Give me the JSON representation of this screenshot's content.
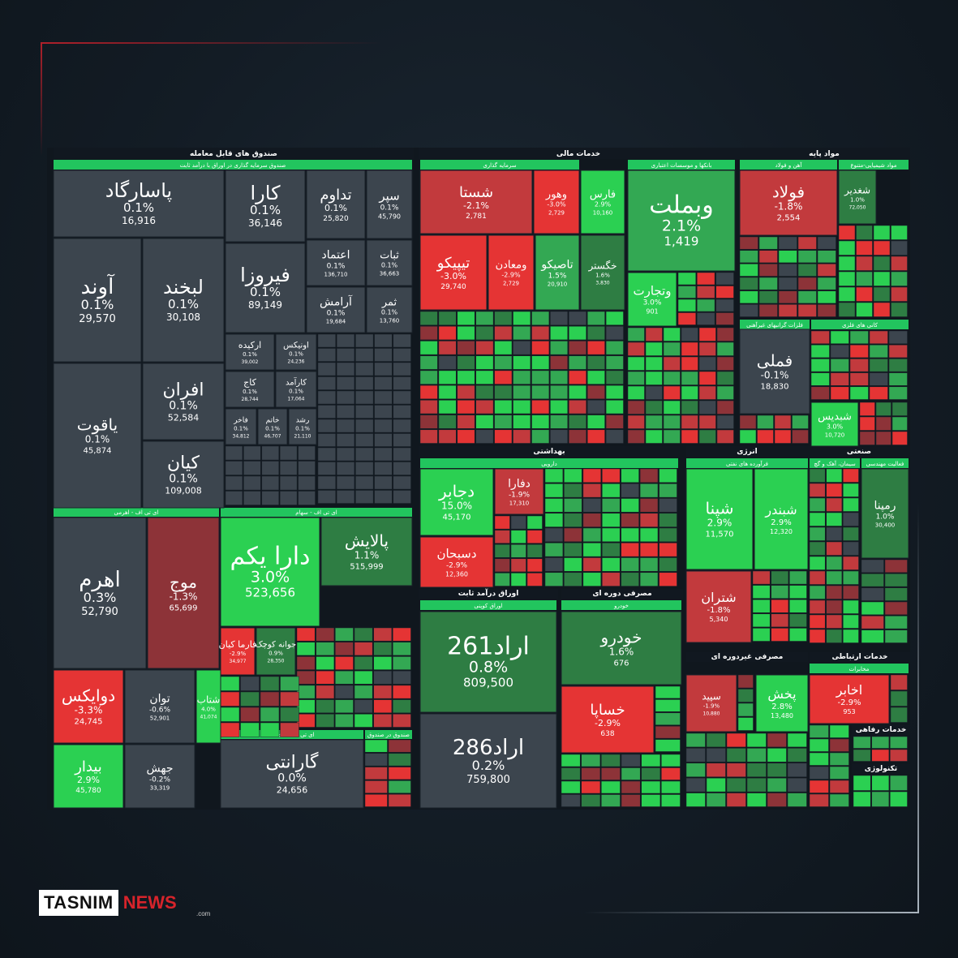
{
  "brand": {
    "name": "TASNIM",
    "news": "NEWS",
    "suffix": ".com"
  },
  "colors": {
    "up_strong": "#2bd052",
    "up": "#33a853",
    "up_dim": "#2e7d43",
    "flat": "#3c454e",
    "down_dim": "#8d3338",
    "down": "#c23a3d",
    "down_strong": "#e53434",
    "title_bar": "#22c55e",
    "background": "#131c25"
  },
  "chart_data": {
    "type": "treemap",
    "title": "",
    "sectors": [
      {
        "name": "صندوق های قابل معامله"
      },
      {
        "name": "خدمات مالی"
      },
      {
        "name": "مواد پایه"
      },
      {
        "name": "بهداشتی"
      },
      {
        "name": "انرژی"
      },
      {
        "name": "صنعتی"
      },
      {
        "name": "اوراق درآمد ثابت"
      },
      {
        "name": "مصرفی دوره ای"
      },
      {
        "name": "مصرفی غیردوره ای"
      },
      {
        "name": "خدمات ارتباطی"
      },
      {
        "name": "خدمات رفاهی"
      },
      {
        "name": "تکنولوژی"
      }
    ],
    "groups": [
      {
        "name": "صندوق سرمایه گذاری در اوراق با درآمد ثابت"
      },
      {
        "name": "ای تی اف - اهرمی"
      },
      {
        "name": "ای تی اف - سهام"
      },
      {
        "name": "ای تی اف - مختلط"
      },
      {
        "name": "صندوق در صندوق"
      },
      {
        "name": "سرمایه گذاری"
      },
      {
        "name": "بانکها و موسسات اعتباری"
      },
      {
        "name": "آهن و فولاد"
      },
      {
        "name": "مواد شیمیایی-متنوع"
      },
      {
        "name": "فلزات گرانبهای غیرآهنی"
      },
      {
        "name": "کانی های فلزی"
      },
      {
        "name": "دارویی"
      },
      {
        "name": "فرآورده های نفتی"
      },
      {
        "name": "سیمان، آهک و گچ"
      },
      {
        "name": "فعالیت مهندسی"
      },
      {
        "name": "اوراق کوپنی"
      },
      {
        "name": "خودرو"
      },
      {
        "name": "مخابرات"
      }
    ],
    "tiles": [
      {
        "name": "پاسارگاد",
        "change": "0.1%",
        "value": "16,916",
        "tone": "flat"
      },
      {
        "name": "کارا",
        "change": "0.1%",
        "value": "36,146",
        "tone": "flat"
      },
      {
        "name": "تداوم",
        "change": "0.1%",
        "value": "25,820",
        "tone": "flat"
      },
      {
        "name": "سپر",
        "change": "0.1%",
        "value": "45,790",
        "tone": "flat"
      },
      {
        "name": "آوند",
        "change": "0.1%",
        "value": "29,570",
        "tone": "flat"
      },
      {
        "name": "لبخند",
        "change": "0.1%",
        "value": "30,108",
        "tone": "flat"
      },
      {
        "name": "فیروزا",
        "change": "0.1%",
        "value": "89,149",
        "tone": "flat"
      },
      {
        "name": "اعتماد",
        "change": "0.1%",
        "value": "136,710",
        "tone": "flat"
      },
      {
        "name": "ثبات",
        "change": "0.1%",
        "value": "36,663",
        "tone": "flat"
      },
      {
        "name": "آرامش",
        "change": "0.1%",
        "value": "19,684",
        "tone": "flat"
      },
      {
        "name": "ثمر",
        "change": "0.1%",
        "value": "13,760",
        "tone": "flat"
      },
      {
        "name": "افران",
        "change": "0.1%",
        "value": "52,584",
        "tone": "flat"
      },
      {
        "name": "یاقوت",
        "change": "0.1%",
        "value": "45,874",
        "tone": "flat"
      },
      {
        "name": "کیان",
        "change": "0.1%",
        "value": "109,008",
        "tone": "flat"
      },
      {
        "name": "ارکیده",
        "change": "0.1%",
        "value": "39,002",
        "tone": "flat"
      },
      {
        "name": "اونیکس",
        "change": "0.1%",
        "value": "24,236",
        "tone": "flat"
      },
      {
        "name": "کاج",
        "change": "0.1%",
        "value": "28,744",
        "tone": "flat"
      },
      {
        "name": "کارآمد",
        "change": "0.1%",
        "value": "17,064",
        "tone": "flat"
      },
      {
        "name": "فاخر",
        "change": "0.1%",
        "value": "34,812",
        "tone": "flat"
      },
      {
        "name": "خاتم",
        "change": "0.1%",
        "value": "46,707",
        "tone": "flat"
      },
      {
        "name": "رشد",
        "change": "0.1%",
        "value": "21,110",
        "tone": "flat"
      },
      {
        "name": "اهرم",
        "change": "0.3%",
        "value": "52,790",
        "tone": "flat"
      },
      {
        "name": "موج",
        "change": "-1.3%",
        "value": "65,699",
        "tone": "down_dim"
      },
      {
        "name": "دارا یکم",
        "change": "3.0%",
        "value": "523,656",
        "tone": "up_strong"
      },
      {
        "name": "پالایش",
        "change": "1.1%",
        "value": "515,999",
        "tone": "up_dim"
      },
      {
        "name": "دوایکس",
        "change": "-3.3%",
        "value": "24,745",
        "tone": "down_strong"
      },
      {
        "name": "توان",
        "change": "-0.6%",
        "value": "52,901",
        "tone": "flat"
      },
      {
        "name": "شتاب",
        "change": "4.0%",
        "value": "41,074",
        "tone": "up_strong"
      },
      {
        "name": "بیدار",
        "change": "2.9%",
        "value": "45,780",
        "tone": "up_strong"
      },
      {
        "name": "جهش",
        "change": "-0.2%",
        "value": "33,319",
        "tone": "flat"
      },
      {
        "name": "گارانتی",
        "change": "0.0%",
        "value": "24,656",
        "tone": "flat"
      },
      {
        "name": "فارما کیان",
        "change": "-2.9%",
        "value": "34,977",
        "tone": "down_strong"
      },
      {
        "name": "جوانه کوچک",
        "change": "0.9%",
        "value": "28,350",
        "tone": "up_dim"
      },
      {
        "name": "شستا",
        "change": "-2.1%",
        "value": "2,781",
        "tone": "down"
      },
      {
        "name": "وهور",
        "change": "-3.0%",
        "value": "2,729",
        "tone": "down_strong"
      },
      {
        "name": "فارس",
        "change": "2.9%",
        "value": "10,160",
        "tone": "up_strong"
      },
      {
        "name": "وبملت",
        "change": "2.1%",
        "value": "1,419",
        "tone": "up"
      },
      {
        "name": "تیپیکو",
        "change": "-3.0%",
        "value": "29,740",
        "tone": "down_strong"
      },
      {
        "name": "ومعادن",
        "change": "-2.9%",
        "value": "2,729",
        "tone": "down_strong"
      },
      {
        "name": "تاصیکو",
        "change": "1.5%",
        "value": "20,910",
        "tone": "up"
      },
      {
        "name": "خگستر",
        "change": "1.6%",
        "value": "3,830",
        "tone": "up_dim"
      },
      {
        "name": "وتجارت",
        "change": "3.0%",
        "value": "901",
        "tone": "up_strong"
      },
      {
        "name": "فولاد",
        "change": "-1.8%",
        "value": "2,554",
        "tone": "down"
      },
      {
        "name": "شغدیر",
        "change": "1.0%",
        "value": "72,050",
        "tone": "up_dim"
      },
      {
        "name": "فملی",
        "change": "-0.1%",
        "value": "18,830",
        "tone": "flat"
      },
      {
        "name": "شبدیس",
        "change": "3.0%",
        "value": "10,720",
        "tone": "up_strong"
      },
      {
        "name": "دجابر",
        "change": "15.0%",
        "value": "45,170",
        "tone": "up_strong"
      },
      {
        "name": "دفارا",
        "change": "-1.9%",
        "value": "17,310",
        "tone": "down"
      },
      {
        "name": "دسبحان",
        "change": "-2.9%",
        "value": "12,360",
        "tone": "down_strong"
      },
      {
        "name": "شپنا",
        "change": "2.9%",
        "value": "11,570",
        "tone": "up_strong"
      },
      {
        "name": "شبندر",
        "change": "2.9%",
        "value": "12,320",
        "tone": "up_strong"
      },
      {
        "name": "شتران",
        "change": "-1.8%",
        "value": "5,340",
        "tone": "down"
      },
      {
        "name": "رمپنا",
        "change": "1.0%",
        "value": "30,400",
        "tone": "up_dim"
      },
      {
        "name": "اراد261",
        "change": "0.8%",
        "value": "809,500",
        "tone": "up_dim"
      },
      {
        "name": "اراد286",
        "change": "0.2%",
        "value": "759,800",
        "tone": "flat"
      },
      {
        "name": "خودرو",
        "change": "1.6%",
        "value": "676",
        "tone": "up_dim"
      },
      {
        "name": "خساپا",
        "change": "-2.9%",
        "value": "638",
        "tone": "down_strong"
      },
      {
        "name": "سپید",
        "change": "-1.9%",
        "value": "10,880",
        "tone": "down"
      },
      {
        "name": "پخش",
        "change": "2.8%",
        "value": "13,480",
        "tone": "up_strong"
      },
      {
        "name": "اخابر",
        "change": "-2.9%",
        "value": "953",
        "tone": "down_strong"
      }
    ]
  }
}
